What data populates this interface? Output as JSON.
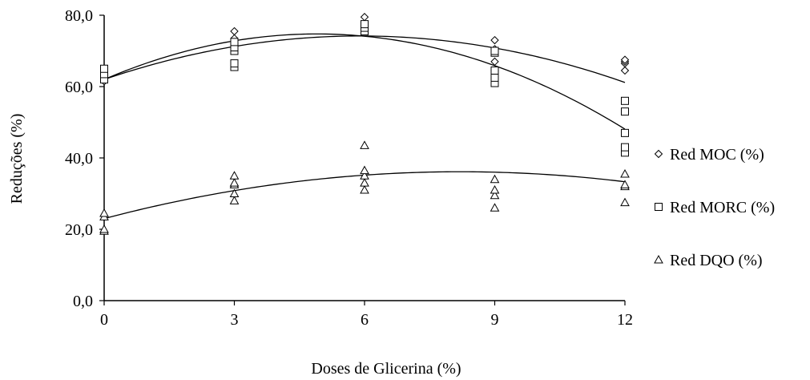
{
  "chart_data": {
    "type": "scatter",
    "title": "",
    "xlabel": "Doses de Glicerina  (%)",
    "ylabel": "Reduções (%)",
    "xlim": [
      0,
      12
    ],
    "ylim": [
      0,
      80
    ],
    "x_ticks": [
      0,
      3,
      6,
      9,
      12
    ],
    "x_tick_labels": [
      "0",
      "3",
      "6",
      "9",
      "12"
    ],
    "y_ticks": [
      0,
      20,
      40,
      60,
      80
    ],
    "y_tick_labels": [
      "0,0",
      "20,0",
      "40,0",
      "60,0",
      "80,0"
    ],
    "grid": false,
    "legend_position": "right",
    "series": [
      {
        "name": "Red MOC (%)",
        "marker": "diamond",
        "points": [
          [
            0,
            61.5
          ],
          [
            0,
            62.0
          ],
          [
            0,
            62.5
          ],
          [
            0,
            63.0
          ],
          [
            3,
            72.0
          ],
          [
            3,
            73.5
          ],
          [
            3,
            75.5
          ],
          [
            6,
            76.5
          ],
          [
            6,
            77.0
          ],
          [
            6,
            79.5
          ],
          [
            9,
            64.5
          ],
          [
            9,
            67.0
          ],
          [
            9,
            70.5
          ],
          [
            9,
            73.0
          ],
          [
            12,
            64.5
          ],
          [
            12,
            66.5
          ],
          [
            12,
            67.0
          ],
          [
            12,
            67.5
          ]
        ],
        "trend_quadratic": [
          62.0,
          4.13,
          -0.35
        ]
      },
      {
        "name": "Red MORC (%)",
        "marker": "square",
        "points": [
          [
            0,
            62.0
          ],
          [
            0,
            63.5
          ],
          [
            0,
            65.0
          ],
          [
            3,
            65.5
          ],
          [
            3,
            66.5
          ],
          [
            3,
            70.0
          ],
          [
            3,
            71.0
          ],
          [
            3,
            72.5
          ],
          [
            6,
            75.5
          ],
          [
            6,
            76.5
          ],
          [
            6,
            77.5
          ],
          [
            9,
            61.0
          ],
          [
            9,
            62.5
          ],
          [
            9,
            64.5
          ],
          [
            9,
            69.5
          ],
          [
            9,
            70.0
          ],
          [
            12,
            41.5
          ],
          [
            12,
            43.0
          ],
          [
            12,
            47.0
          ],
          [
            12,
            53.0
          ],
          [
            12,
            56.0
          ]
        ],
        "trend_quadratic": [
          62.0,
          5.2,
          -0.53
        ]
      },
      {
        "name": "Red DQO (%)",
        "marker": "triangle",
        "points": [
          [
            0,
            19.5
          ],
          [
            0,
            20.0
          ],
          [
            0,
            23.5
          ],
          [
            0,
            24.5
          ],
          [
            3,
            28.0
          ],
          [
            3,
            30.0
          ],
          [
            3,
            32.5
          ],
          [
            3,
            33.0
          ],
          [
            3,
            35.0
          ],
          [
            6,
            31.0
          ],
          [
            6,
            33.0
          ],
          [
            6,
            35.0
          ],
          [
            6,
            36.5
          ],
          [
            6,
            43.5
          ],
          [
            9,
            26.0
          ],
          [
            9,
            29.5
          ],
          [
            9,
            31.0
          ],
          [
            9,
            34.0
          ],
          [
            12,
            27.5
          ],
          [
            12,
            32.0
          ],
          [
            12,
            32.5
          ],
          [
            12,
            35.5
          ]
        ],
        "trend_quadratic": [
          23.0,
          3.2,
          -0.195
        ]
      }
    ]
  }
}
